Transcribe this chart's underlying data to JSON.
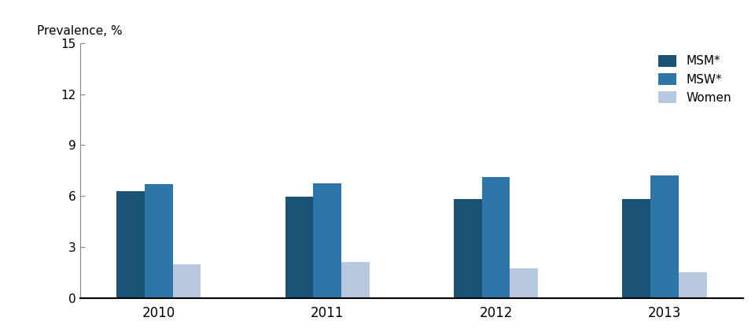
{
  "years": [
    "2010",
    "2011",
    "2012",
    "2013"
  ],
  "msm_values": [
    6.3,
    5.97,
    5.82,
    5.83
  ],
  "msw_values": [
    6.7,
    6.75,
    7.15,
    7.2
  ],
  "women_values": [
    2.0,
    2.15,
    1.75,
    1.55
  ],
  "colors": {
    "msm": "#1a5276",
    "msw": "#2e75a8",
    "women": "#b8c8df"
  },
  "ylabel": "Prevalence, %",
  "ylim": [
    0,
    15
  ],
  "yticks": [
    0,
    3,
    6,
    9,
    12,
    15
  ],
  "legend_labels": [
    "MSM*",
    "MSW*",
    "Women"
  ],
  "bar_width": 0.25,
  "group_positions": [
    1.0,
    2.5,
    4.0,
    5.5
  ]
}
